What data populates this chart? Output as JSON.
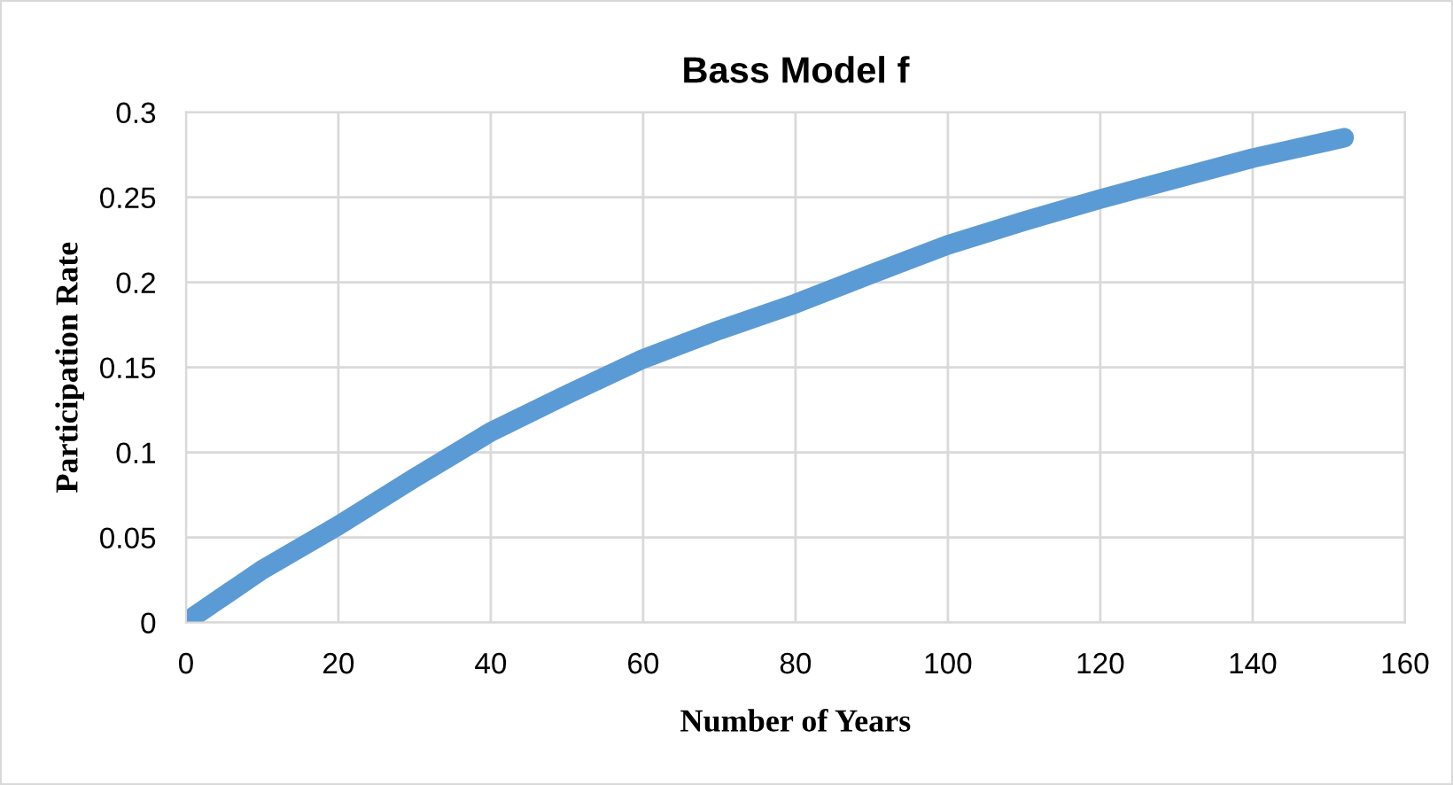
{
  "chart_data": {
    "type": "line",
    "title": "Bass Model f",
    "xlabel": "Number of Years",
    "ylabel": "Participation Rate",
    "x": [
      1,
      10,
      20,
      30,
      40,
      50,
      60,
      70,
      80,
      90,
      100,
      110,
      120,
      130,
      140,
      150,
      152
    ],
    "series": [
      {
        "color": "#5b9bd5",
        "values": [
          0.0035,
          0.031,
          0.057,
          0.085,
          0.112,
          0.134,
          0.155,
          0.172,
          0.1875,
          0.205,
          0.222,
          0.236,
          0.249,
          0.261,
          0.273,
          0.283,
          0.285
        ]
      }
    ],
    "xlim": [
      0,
      160
    ],
    "xticks": [
      0,
      20,
      40,
      60,
      80,
      100,
      120,
      140,
      160
    ],
    "ylim": [
      0,
      0.3
    ],
    "yticks": [
      0,
      0.05,
      0.1,
      0.15,
      0.2,
      0.25,
      0.3
    ],
    "grid": true,
    "legend": false,
    "line_style": "solid"
  }
}
